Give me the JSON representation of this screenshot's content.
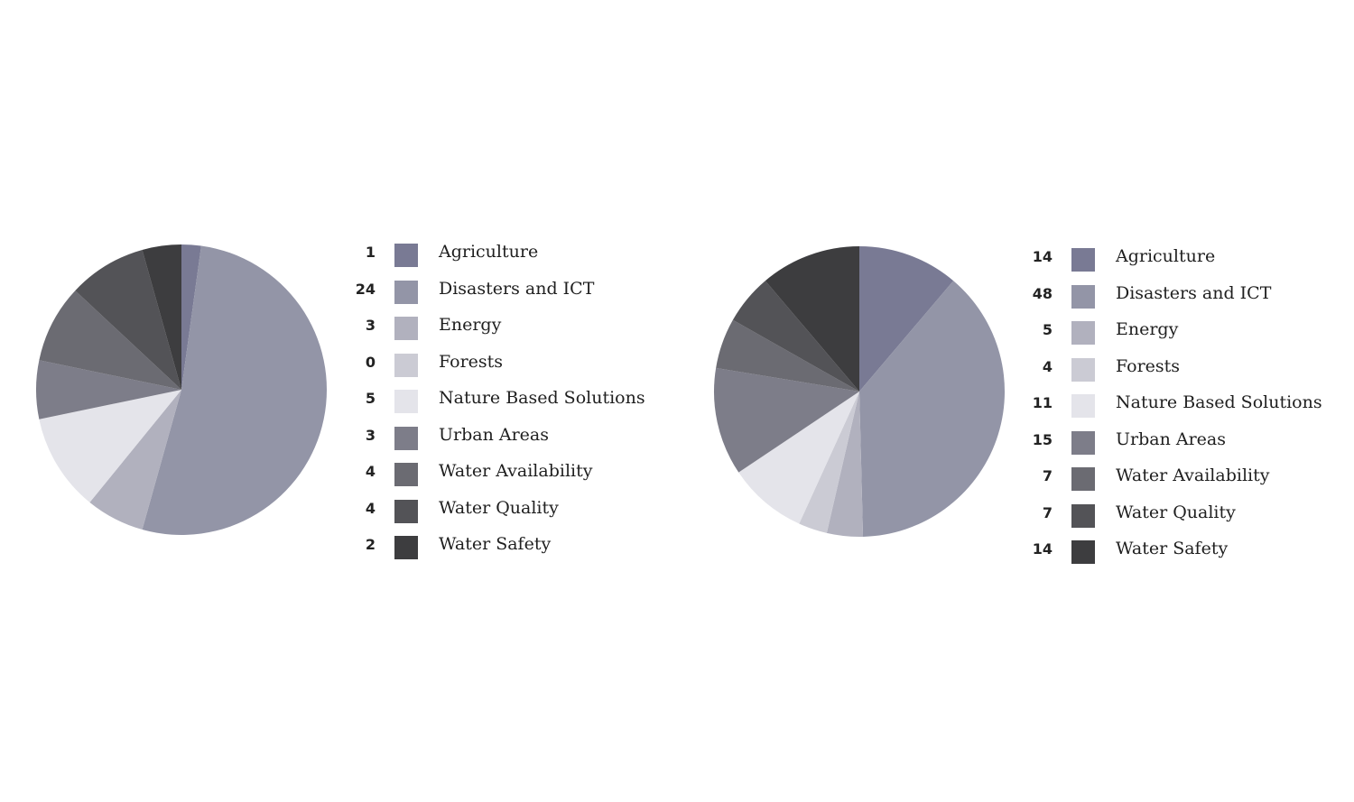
{
  "chart_data": [
    {
      "type": "pie",
      "slices": [
        {
          "label": "Agriculture",
          "value": 1,
          "color": "#797a94"
        },
        {
          "label": "Disasters and ICT",
          "value": 24,
          "color": "#9395a7"
        },
        {
          "label": "Energy",
          "value": 3,
          "color": "#b1b1be"
        },
        {
          "label": "Forests",
          "value": 0,
          "color": "#cbcbd4"
        },
        {
          "label": "Nature Based Solutions",
          "value": 5,
          "color": "#e4e4ea"
        },
        {
          "label": "Urban Areas",
          "value": 3,
          "color": "#7d7d89"
        },
        {
          "label": "Water Availability",
          "value": 4,
          "color": "#6b6b72"
        },
        {
          "label": "Water Quality",
          "value": 4,
          "color": "#535357"
        },
        {
          "label": "Water Safety",
          "value": 2,
          "color": "#3d3d3f"
        }
      ]
    },
    {
      "type": "pie",
      "slices": [
        {
          "label": "Agriculture",
          "value": 14,
          "color": "#797a94"
        },
        {
          "label": "Disasters and ICT",
          "value": 48,
          "color": "#9395a7"
        },
        {
          "label": "Energy",
          "value": 5,
          "color": "#b1b1be"
        },
        {
          "label": "Forests",
          "value": 4,
          "color": "#cbcbd4"
        },
        {
          "label": "Nature Based Solutions",
          "value": 11,
          "color": "#e4e4ea"
        },
        {
          "label": "Urban Areas",
          "value": 15,
          "color": "#7d7d89"
        },
        {
          "label": "Water Availability",
          "value": 7,
          "color": "#6b6b72"
        },
        {
          "label": "Water Quality",
          "value": 7,
          "color": "#535357"
        },
        {
          "label": "Water Safety",
          "value": 14,
          "color": "#3d3d3f"
        }
      ]
    }
  ]
}
